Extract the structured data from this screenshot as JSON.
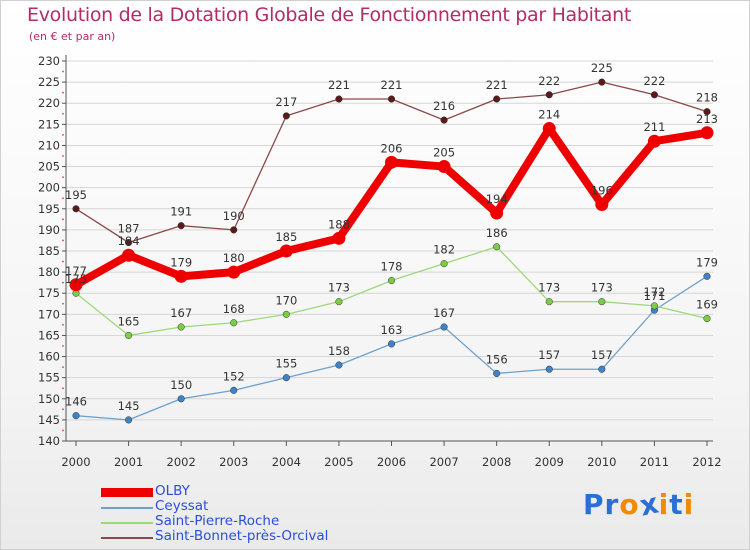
{
  "header": {
    "title": "Evolution de la Dotation Globale de Fonctionnement par Habitant",
    "subtitle": "(en € et par an)"
  },
  "logo": {
    "text": "Proxiti",
    "letters": [
      "P",
      "r",
      "o",
      "x",
      "i",
      "t",
      "i"
    ],
    "colors": [
      "#2a6fd6",
      "#2a6fd6",
      "#f28a00",
      "#2a6fd6",
      "#f28a00",
      "#2a6fd6",
      "#f28a00"
    ]
  },
  "chart_data": {
    "type": "line",
    "title": "Evolution de la Dotation Globale de Fonctionnement par Habitant",
    "subtitle": "(en € et par an)",
    "xlabel": "",
    "ylabel": "",
    "x": [
      "2000",
      "2001",
      "2002",
      "2003",
      "2004",
      "2005",
      "2006",
      "2007",
      "2008",
      "2009",
      "2010",
      "2011",
      "2012"
    ],
    "yticks": [
      140,
      145,
      150,
      155,
      160,
      165,
      170,
      175,
      180,
      185,
      190,
      195,
      200,
      205,
      210,
      215,
      220,
      225,
      230
    ],
    "ylim": [
      140,
      230
    ],
    "grid": "horizontal",
    "legend_position": "bottom-left",
    "series": [
      {
        "name": "OLBY",
        "color": "#ee0000",
        "point_color": "#ee0000",
        "emphasis": true,
        "values": [
          177,
          184,
          179,
          180,
          185,
          188,
          206,
          205,
          194,
          214,
          196,
          211,
          213
        ]
      },
      {
        "name": "Ceyssat",
        "color": "#6fa0cc",
        "point_color": "#3e82c9",
        "emphasis": false,
        "values": [
          146,
          145,
          150,
          152,
          155,
          158,
          163,
          167,
          156,
          157,
          157,
          171,
          179
        ]
      },
      {
        "name": "Saint-Pierre-Roche",
        "color": "#9fd87a",
        "point_color": "#7ccc44",
        "emphasis": false,
        "values": [
          175,
          165,
          167,
          168,
          170,
          173,
          178,
          182,
          186,
          173,
          173,
          172,
          169
        ]
      },
      {
        "name": "Saint-Bonnet-près-Orcival",
        "color": "#8a4a4a",
        "point_color": "#5a1a1a",
        "emphasis": false,
        "values": [
          195,
          187,
          191,
          190,
          217,
          221,
          221,
          216,
          221,
          222,
          225,
          222,
          218
        ]
      }
    ]
  }
}
